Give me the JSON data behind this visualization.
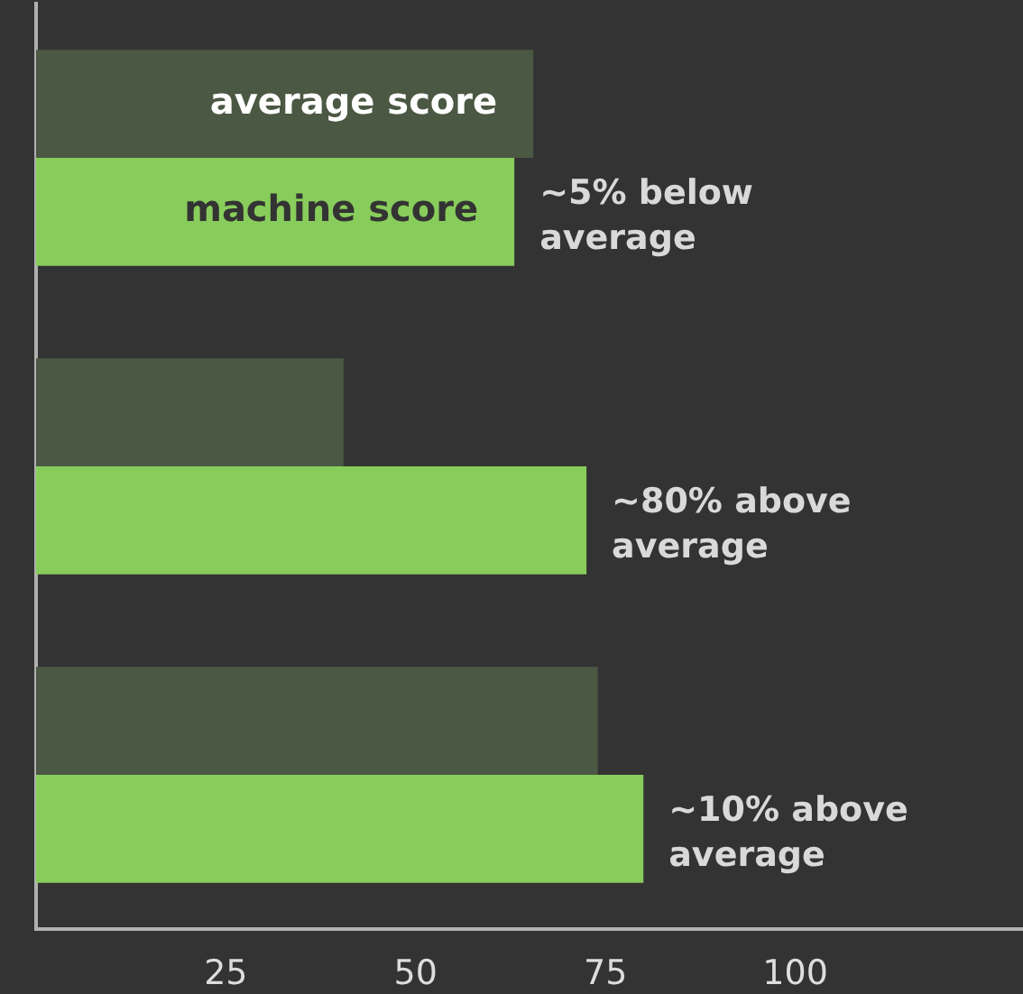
{
  "chart_data": {
    "type": "bar",
    "orientation": "horizontal",
    "categories": [
      null,
      null,
      null
    ],
    "series": [
      {
        "name": "average score",
        "color": "#4b5843",
        "values": [
          65.5,
          40.5,
          74
        ]
      },
      {
        "name": "machine score",
        "color": "#88cd5b",
        "values": [
          63,
          72.5,
          80
        ]
      }
    ],
    "xlim": [
      0,
      130
    ],
    "xticks": [
      25,
      50,
      75,
      100
    ],
    "legend": false,
    "grid": false,
    "tick_labels": "x",
    "annotations": [
      {
        "text": "~5% below average",
        "x": 63
      },
      {
        "text": "~80% above average",
        "x": 72.5
      },
      {
        "text": "~10% above average",
        "x": 80
      }
    ]
  }
}
